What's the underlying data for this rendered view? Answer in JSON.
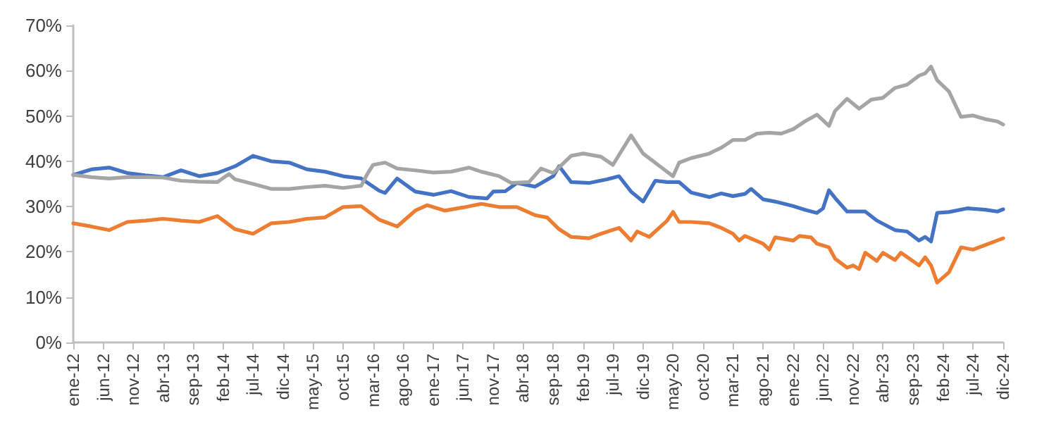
{
  "chart_data": {
    "type": "line",
    "xlim": [
      "2012-01",
      "2024-12"
    ],
    "ylim": [
      0,
      70
    ],
    "yticks": [
      {
        "value": 0,
        "label": "0%"
      },
      {
        "value": 10,
        "label": "10%"
      },
      {
        "value": 20,
        "label": "20%"
      },
      {
        "value": 30,
        "label": "30%"
      },
      {
        "value": 40,
        "label": "40%"
      },
      {
        "value": 50,
        "label": "50%"
      },
      {
        "value": 60,
        "label": "60%"
      },
      {
        "value": 70,
        "label": "70%"
      }
    ],
    "xticks": [
      {
        "value": "2012-01",
        "label": "ene-12"
      },
      {
        "value": "2012-06",
        "label": "jun-12"
      },
      {
        "value": "2012-11",
        "label": "nov-12"
      },
      {
        "value": "2013-04",
        "label": "abr-13"
      },
      {
        "value": "2013-09",
        "label": "sep-13"
      },
      {
        "value": "2014-02",
        "label": "feb-14"
      },
      {
        "value": "2014-07",
        "label": "jul-14"
      },
      {
        "value": "2014-12",
        "label": "dic-14"
      },
      {
        "value": "2015-05",
        "label": "may-15"
      },
      {
        "value": "2015-10",
        "label": "oct-15"
      },
      {
        "value": "2016-03",
        "label": "mar-16"
      },
      {
        "value": "2016-08",
        "label": "ago-16"
      },
      {
        "value": "2017-01",
        "label": "ene-17"
      },
      {
        "value": "2017-06",
        "label": "jun-17"
      },
      {
        "value": "2017-11",
        "label": "nov-17"
      },
      {
        "value": "2018-04",
        "label": "abr-18"
      },
      {
        "value": "2018-09",
        "label": "sep-18"
      },
      {
        "value": "2019-02",
        "label": "feb-19"
      },
      {
        "value": "2019-07",
        "label": "jul-19"
      },
      {
        "value": "2019-12",
        "label": "dic-19"
      },
      {
        "value": "2020-05",
        "label": "may-20"
      },
      {
        "value": "2020-10",
        "label": "oct-20"
      },
      {
        "value": "2021-03",
        "label": "mar-21"
      },
      {
        "value": "2021-08",
        "label": "ago-21"
      },
      {
        "value": "2022-01",
        "label": "ene-22"
      },
      {
        "value": "2022-06",
        "label": "jun-22"
      },
      {
        "value": "2022-11",
        "label": "nov-22"
      },
      {
        "value": "2023-04",
        "label": "abr-23"
      },
      {
        "value": "2023-09",
        "label": "sep-23"
      },
      {
        "value": "2024-02",
        "label": "feb-24"
      },
      {
        "value": "2024-07",
        "label": "jul-24"
      },
      {
        "value": "2024-12",
        "label": "dic-24"
      }
    ],
    "grid": false,
    "series": [
      {
        "color": "#4472c4",
        "x": [
          "2012-01",
          "2012-04",
          "2012-07",
          "2012-10",
          "2013-01",
          "2013-04",
          "2013-07",
          "2013-10",
          "2014-01",
          "2014-04",
          "2014-07",
          "2014-10",
          "2015-01",
          "2015-04",
          "2015-07",
          "2015-10",
          "2016-01",
          "2016-04",
          "2016-05",
          "2016-07",
          "2016-10",
          "2017-01",
          "2017-04",
          "2017-07",
          "2017-10",
          "2017-11",
          "2018-01",
          "2018-03",
          "2018-06",
          "2018-09",
          "2018-10",
          "2018-12",
          "2019-03",
          "2019-06",
          "2019-08",
          "2019-10",
          "2019-12",
          "2020-02",
          "2020-04",
          "2020-06",
          "2020-08",
          "2020-11",
          "2021-01",
          "2021-03",
          "2021-05",
          "2021-06",
          "2021-08",
          "2021-10",
          "2022-01",
          "2022-03",
          "2022-05",
          "2022-06",
          "2022-07",
          "2022-08",
          "2022-10",
          "2023-01",
          "2023-03",
          "2023-06",
          "2023-08",
          "2023-10",
          "2023-11",
          "2023-12",
          "2024-01",
          "2024-03",
          "2024-06",
          "2024-09",
          "2024-11",
          "2024-12"
        ],
        "values": [
          37.0,
          38.2,
          38.6,
          37.4,
          36.9,
          36.5,
          38,
          36.7,
          37.4,
          38.9,
          41.2,
          40,
          39.7,
          38.2,
          37.7,
          36.7,
          36.2,
          33.5,
          33.0,
          36.2,
          33.3,
          32.6,
          33.4,
          32.1,
          31.8,
          33.3,
          33.4,
          35.2,
          34.4,
          36.7,
          38.9,
          35.4,
          35.2,
          36,
          36.7,
          33.3,
          31.1,
          35.7,
          35.4,
          35.4,
          33.1,
          32.1,
          32.9,
          32.3,
          32.8,
          33.9,
          31.6,
          31.1,
          30.1,
          29.3,
          28.6,
          29.6,
          33.6,
          31.9,
          28.9,
          28.9,
          26.9,
          24.8,
          24.5,
          22.5,
          23.3,
          22.3,
          28.6,
          28.8,
          29.6,
          29.3,
          28.9,
          29.4
        ]
      },
      {
        "color": "#ed7d31",
        "x": [
          "2012-01",
          "2012-04",
          "2012-07",
          "2012-10",
          "2013-01",
          "2013-04",
          "2013-07",
          "2013-10",
          "2014-01",
          "2014-04",
          "2014-07",
          "2014-10",
          "2015-01",
          "2015-04",
          "2015-07",
          "2015-10",
          "2016-01",
          "2016-04",
          "2016-07",
          "2016-10",
          "2016-12",
          "2017-03",
          "2017-06",
          "2017-09",
          "2017-12",
          "2018-03",
          "2018-06",
          "2018-08",
          "2018-10",
          "2018-12",
          "2019-03",
          "2019-05",
          "2019-08",
          "2019-10",
          "2019-11",
          "2020-01",
          "2020-04",
          "2020-05",
          "2020-06",
          "2020-08",
          "2020-11",
          "2021-01",
          "2021-03",
          "2021-04",
          "2021-05",
          "2021-08",
          "2021-09",
          "2021-10",
          "2022-01",
          "2022-02",
          "2022-04",
          "2022-05",
          "2022-07",
          "2022-08",
          "2022-10",
          "2022-11",
          "2022-12",
          "2023-01",
          "2023-03",
          "2023-04",
          "2023-06",
          "2023-07",
          "2023-10",
          "2023-11",
          "2023-12",
          "2024-01",
          "2024-03",
          "2024-05",
          "2024-07",
          "2024-12"
        ],
        "values": [
          26.3,
          25.6,
          24.8,
          26.6,
          26.9,
          27.3,
          26.9,
          26.6,
          27.9,
          25,
          24,
          26.3,
          26.6,
          27.3,
          27.6,
          29.9,
          30.1,
          27.1,
          25.6,
          29.1,
          30.3,
          29.1,
          29.8,
          30.6,
          29.9,
          29.9,
          28.1,
          27.6,
          25,
          23.3,
          23,
          24,
          25.3,
          22.5,
          24.5,
          23.3,
          26.9,
          28.8,
          26.6,
          26.6,
          26.3,
          25.3,
          24,
          22.5,
          23.5,
          21.8,
          20.5,
          23.2,
          22.5,
          23.5,
          23.2,
          21.8,
          21,
          18.5,
          16.5,
          17,
          16.2,
          19.8,
          18,
          19.8,
          18.2,
          19.8,
          17,
          18.8,
          17,
          13.2,
          15.5,
          21,
          20.5,
          23
        ]
      },
      {
        "color": "#a5a5a5",
        "x": [
          "2012-01",
          "2012-04",
          "2012-07",
          "2012-10",
          "2013-01",
          "2013-04",
          "2013-07",
          "2013-10",
          "2014-01",
          "2014-03",
          "2014-04",
          "2014-07",
          "2014-10",
          "2015-01",
          "2015-04",
          "2015-07",
          "2015-10",
          "2016-01",
          "2016-02",
          "2016-03",
          "2016-05",
          "2016-07",
          "2016-10",
          "2017-01",
          "2017-04",
          "2017-07",
          "2017-09",
          "2017-12",
          "2018-02",
          "2018-05",
          "2018-07",
          "2018-09",
          "2018-12",
          "2019-02",
          "2019-05",
          "2019-07",
          "2019-10",
          "2019-12",
          "2020-03",
          "2020-05",
          "2020-06",
          "2020-08",
          "2020-11",
          "2021-01",
          "2021-03",
          "2021-05",
          "2021-07",
          "2021-09",
          "2021-11",
          "2022-01",
          "2022-03",
          "2022-05",
          "2022-07",
          "2022-08",
          "2022-10",
          "2022-12",
          "2023-02",
          "2023-04",
          "2023-06",
          "2023-08",
          "2023-10",
          "2023-11",
          "2023-12",
          "2024-01",
          "2024-03",
          "2024-05",
          "2024-07",
          "2024-09",
          "2024-11",
          "2024-12"
        ],
        "values": [
          37,
          36.5,
          36.2,
          36.5,
          36.5,
          36.4,
          35.7,
          35.5,
          35.4,
          37.2,
          36,
          35,
          33.9,
          33.9,
          34.3,
          34.6,
          34.1,
          34.6,
          37.2,
          39.2,
          39.7,
          38.4,
          38,
          37.5,
          37.7,
          38.6,
          37.7,
          36.7,
          35.2,
          35.4,
          38.4,
          37.4,
          41.2,
          41.7,
          41,
          39.2,
          45.7,
          41.7,
          38.7,
          36.7,
          39.7,
          40.7,
          41.7,
          43,
          44.7,
          44.7,
          46.1,
          46.3,
          46.1,
          47.1,
          48.8,
          50.3,
          47.8,
          51.1,
          53.8,
          51.6,
          53.6,
          54,
          56.2,
          56.9,
          58.9,
          59.4,
          60.9,
          57.9,
          55.4,
          49.8,
          50.1,
          49.3,
          48.8,
          48.1
        ]
      }
    ]
  }
}
